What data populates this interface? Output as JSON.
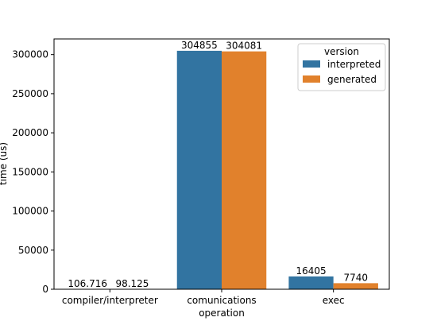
{
  "chart_data": {
    "type": "bar",
    "categories": [
      "compiler/interpreter",
      "comunications",
      "exec"
    ],
    "category_labels": [
      [
        "compiler/interpreter"
      ],
      [
        "comunications"
      ],
      [
        "exec"
      ]
    ],
    "series": [
      {
        "name": "interpreted",
        "values": [
          106.716,
          304855,
          16405
        ],
        "labels": [
          "106.716",
          "304855",
          "16405"
        ],
        "color": "#3274a1"
      },
      {
        "name": "generated",
        "values": [
          98.125,
          304081,
          7740
        ],
        "labels": [
          "98.125",
          "304081",
          "7740"
        ],
        "color": "#e1812c"
      }
    ],
    "xlabel": "operation",
    "ylabel": "time (us)",
    "ylim": [
      0,
      320000
    ],
    "yticks": [
      0,
      50000,
      100000,
      150000,
      200000,
      250000,
      300000
    ],
    "ytick_labels": [
      "0",
      "50000",
      "100000",
      "150000",
      "200000",
      "250000",
      "300000"
    ],
    "grid": false,
    "legend": {
      "title": "version",
      "placement": "top-right"
    }
  }
}
